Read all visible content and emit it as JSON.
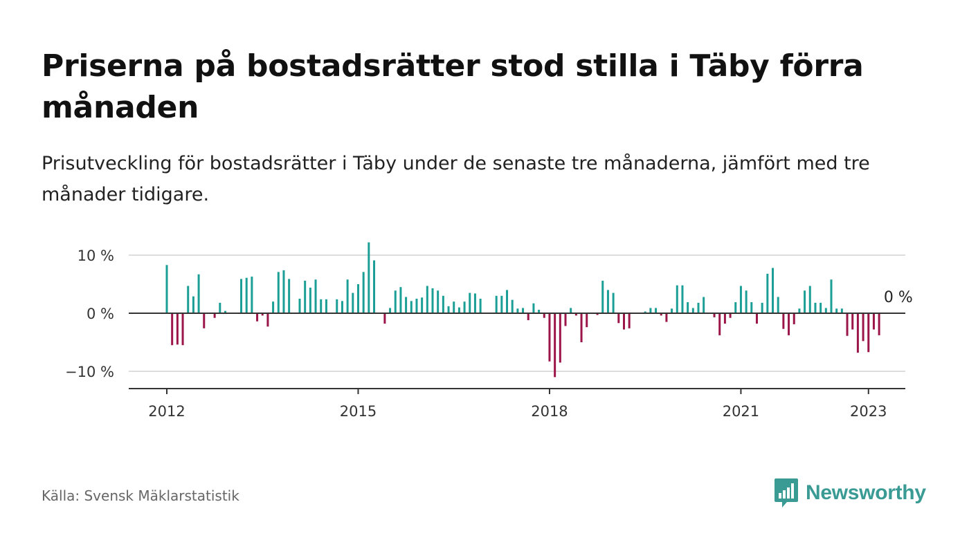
{
  "title": "Priserna på bostadsrätter stod stilla i Täby förra månaden",
  "subtitle": "Prisutveckling för bostadsrätter i Täby under de senaste tre månaderna, jämfört med tre månader tidigare.",
  "source": "Källa: Svensk Mäklarstatistik",
  "brand": {
    "name": "Newsworthy",
    "icon": "newsworthy-chat-bars-icon",
    "color": "#3a9a94"
  },
  "colors": {
    "positive": "#1a9e96",
    "negative": "#9c1549",
    "zero_line": "#333333",
    "grid": "#dddddd"
  },
  "chart_data": {
    "type": "bar",
    "title": "Priserna på bostadsrätter stod stilla i Täby förra månaden",
    "xlabel": "",
    "ylabel": "",
    "ylim": [
      -13,
      12.5
    ],
    "y_ticks": [
      10,
      0,
      -10
    ],
    "y_tick_labels": [
      "10 %",
      "0 %",
      "−10 %"
    ],
    "x_ticks": [
      {
        "label": "2012",
        "index": 0
      },
      {
        "label": "2015",
        "index": 36
      },
      {
        "label": "2018",
        "index": 72
      },
      {
        "label": "2021",
        "index": 108
      },
      {
        "label": "2023",
        "index": 132
      }
    ],
    "x_start": "2012-01",
    "x_end": "2023-01",
    "last_value_label": "0 %",
    "grid": true,
    "values": [
      8.3,
      -5.5,
      -5.4,
      -5.5,
      4.7,
      2.9,
      6.7,
      -2.6,
      0,
      -0.8,
      1.8,
      0.4,
      0,
      0,
      5.9,
      6.1,
      6.3,
      -1.4,
      -0.4,
      -2.3,
      2.0,
      7.1,
      7.4,
      5.9,
      0,
      2.5,
      5.6,
      4.4,
      5.8,
      2.4,
      2.4,
      0,
      2.4,
      2.1,
      5.8,
      3.5,
      5.0,
      7.1,
      12.2,
      9.1,
      0,
      -1.8,
      0.9,
      3.9,
      4.5,
      2.8,
      2.1,
      2.5,
      2.7,
      4.7,
      4.3,
      3.9,
      3.0,
      1.2,
      2.0,
      1.0,
      2.0,
      3.5,
      3.4,
      2.5,
      0,
      0,
      3.0,
      3.0,
      4.0,
      2.3,
      0.8,
      0.9,
      -1.2,
      1.7,
      0.6,
      -0.8,
      -8.3,
      -11.0,
      -8.5,
      -2.2,
      0.9,
      -0.4,
      -5.0,
      -2.4,
      0,
      -0.3,
      5.6,
      4.0,
      3.5,
      -1.7,
      -2.8,
      -2.6,
      0,
      0,
      0.3,
      0.9,
      0.9,
      -0.4,
      -1.5,
      0.8,
      4.8,
      4.8,
      1.9,
      0.9,
      1.8,
      2.8,
      0,
      -0.7,
      -3.8,
      -1.8,
      -0.8,
      1.9,
      4.7,
      3.9,
      1.9,
      -1.8,
      1.8,
      6.8,
      7.8,
      2.8,
      -2.7,
      -3.8,
      -1.9,
      0.8,
      3.9,
      4.7,
      1.8,
      1.8,
      0.9,
      5.8,
      0.8,
      0.8,
      -3.9,
      -2.8,
      -6.8,
      -4.8,
      -6.7,
      -2.8,
      -3.8,
      0
    ]
  }
}
